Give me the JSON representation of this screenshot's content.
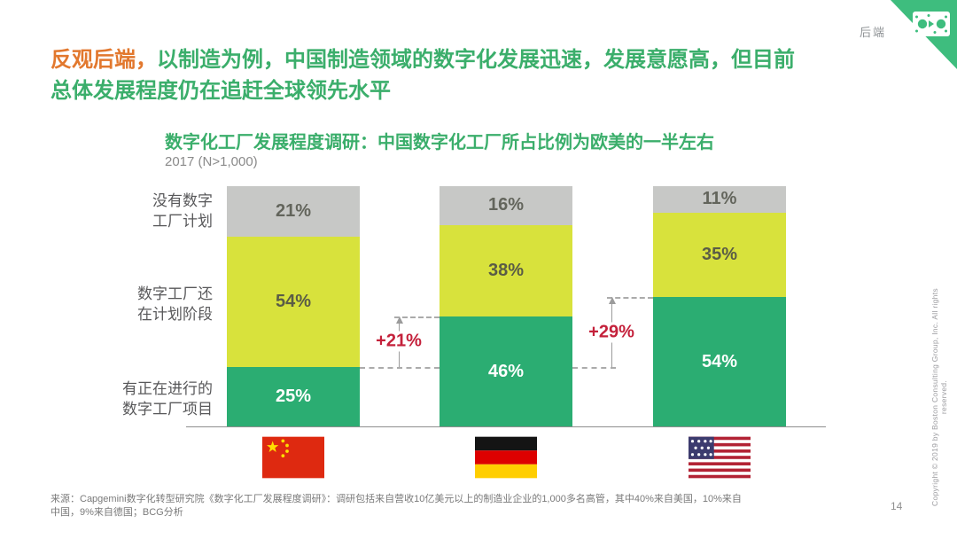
{
  "page": {
    "section_tag": "后端",
    "page_number": "14",
    "copyright_vertical": "Copyright © 2019 by Boston Consulting Group, Inc. All rights reserved."
  },
  "title": {
    "highlight": "反观后端，",
    "rest_line1": "以制造为例，中国制造领域的数字化发展迅速，发展意愿高，但目前",
    "line2": "总体发展程度仍在追赶全球领先水平"
  },
  "chart": {
    "title": "数字化工厂发展程度调研：中国数字化工厂所占比例为欧美的一半左右",
    "subtitle": "2017 (N>1,000)"
  },
  "chart_data": {
    "type": "bar",
    "stacked": true,
    "title": "数字化工厂发展程度调研：中国数字化工厂所占比例为欧美的一半左右",
    "subtitle": "2017 (N>1,000)",
    "unit": "%",
    "ylim": [
      0,
      100
    ],
    "grid": false,
    "legend_position": "left-row-labels",
    "categories": [
      "中国",
      "德国",
      "美国"
    ],
    "series": [
      {
        "name": "没有数字工厂计划",
        "label_display": "没有数字\n工厂计划",
        "color": "#c7c8c6",
        "text_color": "#63655c",
        "values": [
          21,
          16,
          11
        ]
      },
      {
        "name": "数字工厂还在计划阶段",
        "label_display": "数字工厂还\n在计划阶段",
        "color": "#d8e23c",
        "text_color": "#5a5c46",
        "values": [
          54,
          38,
          35
        ]
      },
      {
        "name": "有正在进行的数字工厂项目",
        "label_display": "有正在进行的\n数字工厂项目",
        "color": "#2bad72",
        "text_color": "#ffffff",
        "values": [
          25,
          46,
          54
        ]
      }
    ],
    "annotations": [
      {
        "label": "+21%",
        "from_pct": 25,
        "to_pct": 46
      },
      {
        "label": "+29%",
        "from_pct": 25,
        "to_pct": 54
      }
    ]
  },
  "source": {
    "text": "来源：Capgemini数字化转型研究院《数字化工厂发展程度调研》：调研包括来自营收10亿美元以上的制造业企业的1,000多名高管，其中40%来自美国，10%来自\n中国，9%来自德国；BCG分析"
  },
  "colors": {
    "title_green": "#3bae6b",
    "title_orange": "#e2782e",
    "annotation_red": "#c4213b",
    "corner_green": "#3ebd7e",
    "segment_gray": "#c7c8c6",
    "segment_yellow": "#d8e23c",
    "segment_green": "#2bad72"
  }
}
